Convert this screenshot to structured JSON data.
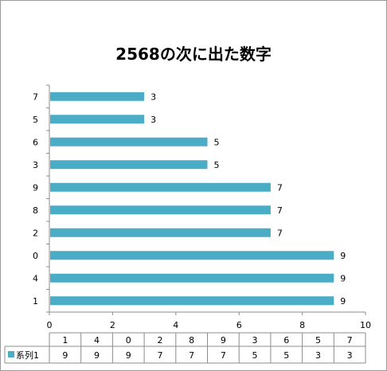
{
  "chart_data": {
    "type": "bar",
    "orientation": "horizontal",
    "title": "2568の次に出た数字",
    "categories": [
      "1",
      "4",
      "0",
      "2",
      "8",
      "9",
      "3",
      "6",
      "5",
      "7"
    ],
    "series": [
      {
        "name": "系列1",
        "values": [
          9,
          9,
          9,
          7,
          7,
          7,
          5,
          5,
          3,
          3
        ],
        "color": "#4bacc6"
      }
    ],
    "xlim": [
      0,
      10
    ],
    "x_ticks": [
      "0",
      "2",
      "4",
      "6",
      "8",
      "10"
    ],
    "data_labels": true,
    "data_table": true,
    "grid": false,
    "legend": "data-table"
  }
}
